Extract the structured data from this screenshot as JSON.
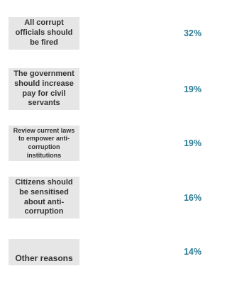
{
  "chart_data": {
    "type": "table",
    "categories": [
      "All corrupt officials should be fired",
      "The government should increase pay for civil servants",
      "Review current laws to empower anti-corruption institutions",
      "Citizens should be sensitised about anti-corruption",
      "Other reasons"
    ],
    "values": [
      32,
      19,
      19,
      16,
      14
    ],
    "value_labels": [
      "32%",
      "19%",
      "19%",
      "16%",
      "14%"
    ],
    "unit": "%"
  },
  "colors": {
    "label_background": "#e6e6e6",
    "label_text": "#333333",
    "value_text": "#2a7a93"
  }
}
